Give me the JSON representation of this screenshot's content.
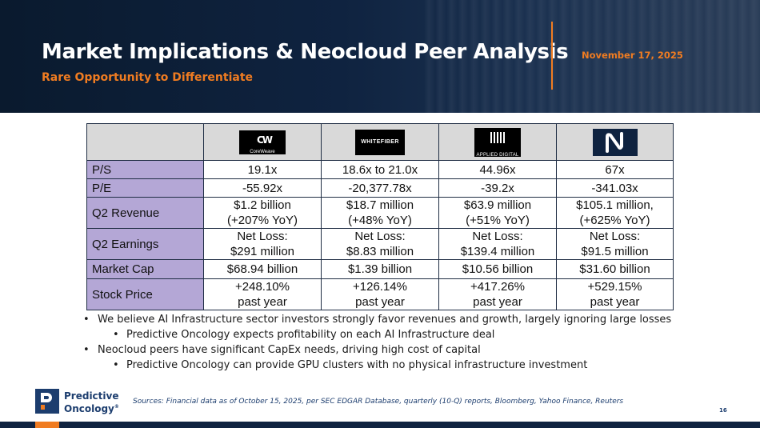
{
  "header": {
    "title": "Market Implications & Neocloud Peer Analysis",
    "subtitle": "Rare Opportunity to Differentiate",
    "date": "November 17, 2025",
    "accent_color": "#f07c21"
  },
  "table": {
    "peers": [
      {
        "logo": "coreweave-logo",
        "text": "CoreWeave",
        "mark": "CW"
      },
      {
        "logo": "whitefiber-logo",
        "text": "WHITEFIBER"
      },
      {
        "logo": "applied-digital-logo",
        "text": "APPLIED DIGITAL"
      },
      {
        "logo": "nebius-logo",
        "text": ""
      }
    ],
    "rows": [
      {
        "label": "P/S",
        "values": [
          [
            "19.1x"
          ],
          [
            "18.6x to 21.0x"
          ],
          [
            "44.96x"
          ],
          [
            "67x"
          ]
        ]
      },
      {
        "label": "P/E",
        "values": [
          [
            "-55.92x"
          ],
          [
            "-20,377.78x"
          ],
          [
            "-39.2x"
          ],
          [
            "-341.03x"
          ]
        ]
      },
      {
        "label": "Q2 Revenue",
        "values": [
          [
            "$1.2 billion",
            "(+207% YoY)"
          ],
          [
            "$18.7 million",
            "(+48% YoY)"
          ],
          [
            "$63.9 million",
            "(+51% YoY)"
          ],
          [
            "$105.1 million,",
            "(+625% YoY)"
          ]
        ]
      },
      {
        "label": "Q2 Earnings",
        "values": [
          [
            "Net Loss:",
            "$291 million"
          ],
          [
            "Net Loss:",
            "$8.83 million"
          ],
          [
            "Net Loss:",
            "$139.4 million"
          ],
          [
            "Net Loss:",
            "$91.5 million"
          ]
        ]
      },
      {
        "label": "Market Cap",
        "values": [
          [
            "$68.94 billion"
          ],
          [
            "$1.39 billion"
          ],
          [
            "$10.56 billion"
          ],
          [
            "$31.60 billion"
          ]
        ]
      },
      {
        "label": "Stock Price",
        "values": [
          [
            "+248.10%",
            "past year"
          ],
          [
            "+126.14%",
            "past year"
          ],
          [
            "+417.26%",
            "past year"
          ],
          [
            "+529.15%",
            "past year"
          ]
        ]
      }
    ],
    "label_color": "#b4a7d6"
  },
  "bullets": [
    {
      "level": 1,
      "text": "We believe AI Infrastructure sector investors strongly favor revenues and growth, largely ignoring large losses"
    },
    {
      "level": 2,
      "text": "Predictive Oncology expects profitability on each AI Infrastructure deal"
    },
    {
      "level": 1,
      "text": "Neocloud peers have significant CapEx needs, driving high cost of capital"
    },
    {
      "level": 2,
      "text": "Predictive Oncology can provide GPU clusters with no physical infrastructure investment"
    }
  ],
  "footer": {
    "brand_line1": "Predictive",
    "brand_line2": "Oncology",
    "brand_mark": "®",
    "sources": "Sources: Financial data as of October 15, 2025, per SEC EDGAR Database, quarterly (10-Q) reports, Bloomberg, Yahoo Finance, Reuters",
    "page_number": "16"
  }
}
